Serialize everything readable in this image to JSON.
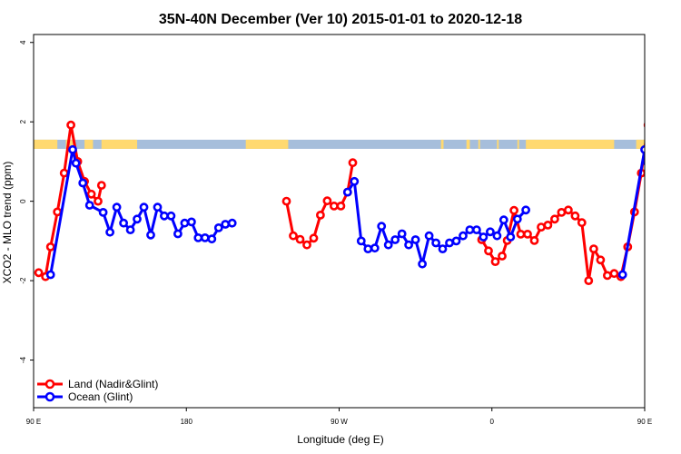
{
  "chart_data": {
    "type": "line",
    "title": "35N-40N December (Ver 10)   2015-01-01 to 2020-12-18",
    "xlabel": "Longitude (deg E)",
    "ylabel": "XCO2 - MLO trend (ppm)",
    "xlim": [
      90,
      450
    ],
    "ylim": [
      -5.2,
      4.2
    ],
    "x_ticks": [
      {
        "value": 90,
        "label": "90 E"
      },
      {
        "value": 180,
        "label": "180"
      },
      {
        "value": 270,
        "label": "90 W"
      },
      {
        "value": 360,
        "label": "0"
      },
      {
        "value": 450,
        "label": "90 E"
      },
      {
        "value": 540,
        "label": "180"
      }
    ],
    "y_ticks": [
      {
        "value": 4,
        "label": "4"
      },
      {
        "value": 2,
        "label": "2"
      },
      {
        "value": 0,
        "label": "0"
      },
      {
        "value": -2,
        "label": "-2"
      },
      {
        "value": -4,
        "label": "-4"
      }
    ],
    "band": {
      "y_range": [
        1.32,
        1.55
      ],
      "land_color": "#FFD970",
      "ocean_color": "#A6BEDB"
    },
    "legend_position": "bottom-left",
    "series": [
      {
        "name": "Land (Nadir&Glint)",
        "color": "#FF0000",
        "segments": [
          [
            [
              93,
              -1.8
            ],
            [
              97,
              -1.9
            ],
            [
              100,
              -1.15
            ],
            [
              104,
              -0.27
            ],
            [
              108,
              0.71
            ],
            [
              112,
              1.92
            ],
            [
              116,
              1.0
            ],
            [
              120,
              0.5
            ],
            [
              124,
              0.18
            ],
            [
              128,
              0.0
            ],
            [
              130,
              0.4
            ]
          ],
          [
            [
              239,
              0.0
            ],
            [
              243,
              -0.87
            ],
            [
              247,
              -0.96
            ],
            [
              251,
              -1.1
            ],
            [
              255,
              -0.93
            ],
            [
              259,
              -0.35
            ],
            [
              263,
              0.01
            ],
            [
              267,
              -0.12
            ],
            [
              271,
              -0.12
            ],
            [
              275,
              0.23
            ],
            [
              278,
              0.97
            ]
          ],
          [
            [
              354,
              -0.97
            ],
            [
              358,
              -1.25
            ],
            [
              362,
              -1.52
            ],
            [
              366,
              -1.38
            ],
            [
              369,
              -0.99
            ],
            [
              373,
              -0.23
            ],
            [
              377,
              -0.83
            ],
            [
              381,
              -0.83
            ],
            [
              385,
              -0.99
            ],
            [
              389,
              -0.65
            ],
            [
              393,
              -0.6
            ],
            [
              397,
              -0.45
            ],
            [
              401,
              -0.28
            ],
            [
              405,
              -0.22
            ],
            [
              409,
              -0.37
            ],
            [
              413,
              -0.54
            ],
            [
              417,
              -2.0
            ],
            [
              420,
              -1.2
            ],
            [
              424,
              -1.48
            ],
            [
              428,
              -1.87
            ],
            [
              432,
              -1.82
            ],
            [
              436,
              -1.9
            ],
            [
              440,
              -1.15
            ],
            [
              444,
              -0.27
            ],
            [
              448,
              0.71
            ],
            [
              452,
              1.92
            ],
            [
              456,
              1.0
            ],
            [
              460,
              0.5
            ],
            [
              464,
              0.18
            ],
            [
              468,
              0.0
            ],
            [
              470,
              0.4
            ]
          ]
        ]
      },
      {
        "name": "Ocean (Glint)",
        "color": "#0000FF",
        "segments": [
          [
            [
              100,
              -1.85
            ],
            [
              113,
              1.3
            ],
            [
              115,
              0.96
            ],
            [
              119,
              0.46
            ],
            [
              123,
              -0.1
            ],
            [
              131,
              -0.28
            ],
            [
              135,
              -0.78
            ],
            [
              139,
              -0.15
            ],
            [
              143,
              -0.55
            ],
            [
              147,
              -0.72
            ],
            [
              151,
              -0.45
            ],
            [
              155,
              -0.15
            ],
            [
              159,
              -0.85
            ],
            [
              163,
              -0.15
            ],
            [
              167,
              -0.37
            ],
            [
              171,
              -0.37
            ],
            [
              175,
              -0.82
            ],
            [
              179,
              -0.55
            ],
            [
              183,
              -0.52
            ],
            [
              187,
              -0.92
            ],
            [
              191,
              -0.92
            ],
            [
              195,
              -0.95
            ],
            [
              199,
              -0.67
            ],
            [
              203,
              -0.58
            ],
            [
              207,
              -0.55
            ]
          ],
          [
            [
              275,
              0.23
            ],
            [
              279,
              0.5
            ],
            [
              283,
              -1.0
            ],
            [
              287,
              -1.2
            ],
            [
              291,
              -1.18
            ],
            [
              295,
              -0.63
            ],
            [
              299,
              -1.1
            ],
            [
              303,
              -0.97
            ],
            [
              307,
              -0.82
            ],
            [
              311,
              -1.1
            ],
            [
              315,
              -0.97
            ],
            [
              319,
              -1.58
            ],
            [
              323,
              -0.87
            ],
            [
              327,
              -1.05
            ],
            [
              331,
              -1.2
            ],
            [
              335,
              -1.05
            ],
            [
              339,
              -1.0
            ],
            [
              343,
              -0.87
            ],
            [
              347,
              -0.72
            ],
            [
              351,
              -0.72
            ],
            [
              355,
              -0.9
            ],
            [
              359,
              -0.77
            ],
            [
              363,
              -0.87
            ],
            [
              367,
              -0.47
            ],
            [
              371,
              -0.9
            ],
            [
              375,
              -0.45
            ],
            [
              380,
              -0.22
            ]
          ],
          [
            [
              437,
              -1.85
            ],
            [
              450,
              1.3
            ],
            [
              452,
              0.96
            ],
            [
              456,
              0.46
            ],
            [
              460,
              -0.1
            ],
            [
              468,
              -0.28
            ],
            [
              472,
              -0.78
            ],
            [
              476,
              -0.15
            ],
            [
              480,
              -0.55
            ],
            [
              484,
              -0.72
            ],
            [
              488,
              -0.45
            ],
            [
              492,
              -0.15
            ],
            [
              496,
              -0.85
            ]
          ]
        ]
      }
    ]
  }
}
